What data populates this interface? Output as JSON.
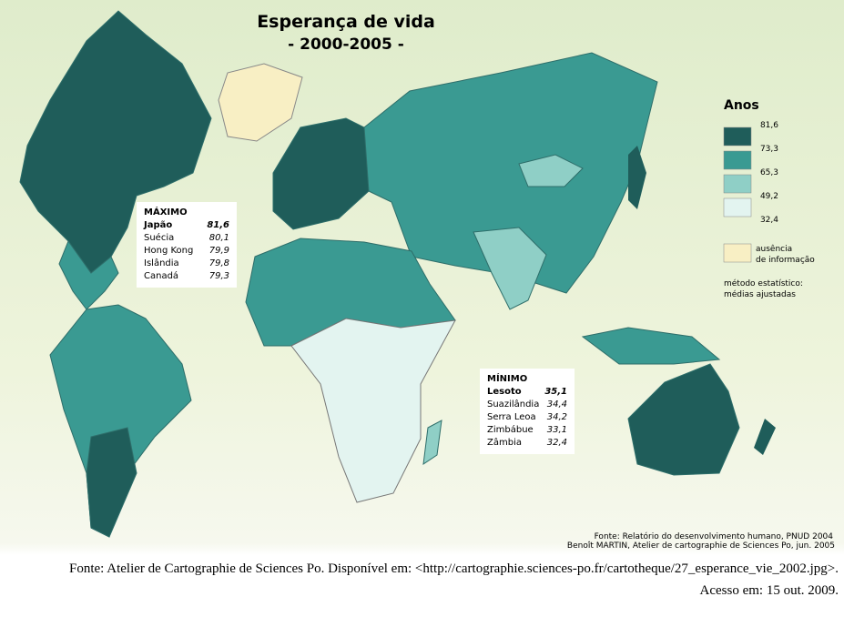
{
  "title": "Esperança de vida",
  "subtitle": "- 2000-2005 -",
  "legend": {
    "title": "Anos",
    "breaks": [
      "81,6",
      "73,3",
      "65,3",
      "49,2",
      "32,4"
    ],
    "colors": [
      "#1f5d5a",
      "#3a9a92",
      "#8fcfc6",
      "#e3f4f0"
    ],
    "no_data": [
      "ausência",
      "de informação"
    ],
    "no_data_color": "#f8efc4",
    "method": [
      "método estatístico:",
      "médias ajustadas"
    ]
  },
  "maximum": {
    "title": "MÁXIMO",
    "rows": [
      [
        "Japão",
        "81,6"
      ],
      [
        "Suécia",
        "80,1"
      ],
      [
        "Hong Kong",
        "79,9"
      ],
      [
        "Islândia",
        "79,8"
      ],
      [
        "Canadá",
        "79,3"
      ]
    ]
  },
  "minimum": {
    "title": "MÍNIMO",
    "rows": [
      [
        "Lesoto",
        "35,1"
      ],
      [
        "Suazilândia",
        "34,4"
      ],
      [
        "Serra Leoa",
        "34,2"
      ],
      [
        "Zimbábue",
        "33,1"
      ],
      [
        "Zâmbia",
        "32,4"
      ]
    ]
  },
  "map_source": [
    "Fonte: Relatório do desenvolvimento humano, PNUD 2004",
    "Benoît MARTIN, Atelier de cartographie de Sciences Po, jun. 2005"
  ],
  "caption": [
    "Fonte: Atelier de Cartographie de Sciences Po. Disponível em: <http://cartographie.sciences-po.fr/cartotheque/27_esperance_vie_2002.jpg>.",
    "Acesso em: 15 out. 2009."
  ]
}
